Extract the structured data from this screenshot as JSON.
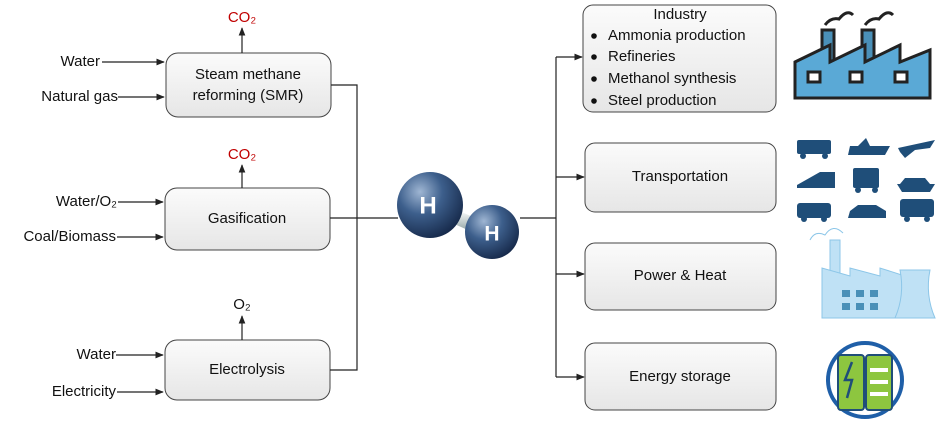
{
  "processes": [
    {
      "label": [
        "Steam methane",
        "reforming (SMR)"
      ],
      "output": "CO₂",
      "inputs": [
        "Water",
        "Natural gas"
      ]
    },
    {
      "label": [
        "Gasification"
      ],
      "output": "CO₂",
      "inputs": [
        "Water/O₂",
        "Coal/Biomass"
      ]
    },
    {
      "label": [
        "Electrolysis"
      ],
      "output": "O₂",
      "inputs": [
        "Water",
        "Electricity"
      ]
    }
  ],
  "hydrogen": {
    "atoms": [
      "H",
      "H"
    ]
  },
  "uses": [
    {
      "title": "Industry",
      "items": [
        "Ammonia production",
        "Refineries",
        "Methanol synthesis",
        "Steel production"
      ]
    },
    {
      "title": "Transportation"
    },
    {
      "title": "Power & Heat"
    },
    {
      "title": "Energy storage"
    }
  ]
}
